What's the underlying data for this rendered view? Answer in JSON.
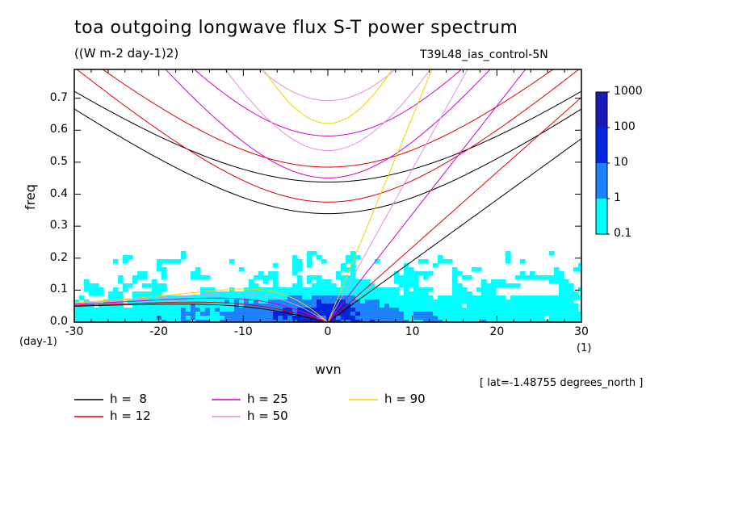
{
  "chart_data": {
    "type": "heatmap",
    "title": "toa outgoing longwave flux S-T power spectrum",
    "units": "((W m-2 day-1)2)",
    "run_label": "T39L48_ias_control-5N",
    "xlabel": "wvn",
    "ylabel": "freq",
    "x_unit": "(1)",
    "y_unit": "(day-1)",
    "xlim": [
      -30,
      30
    ],
    "ylim": [
      0,
      0.79
    ],
    "x_ticks": [
      -30,
      -20,
      -10,
      0,
      10,
      20,
      30
    ],
    "x_tick_labels": [
      "-30",
      "-20",
      "-10",
      "0",
      "10",
      "20",
      "30"
    ],
    "y_ticks": [
      0,
      0.1,
      0.2,
      0.3,
      0.4,
      0.5,
      0.6,
      0.7
    ],
    "y_tick_labels": [
      "0.0",
      "0.1",
      "0.2",
      "0.3",
      "0.4",
      "0.5",
      "0.6",
      "0.7"
    ],
    "colorbar": {
      "levels": [
        "0.1",
        "1",
        "10",
        "100",
        "1000"
      ],
      "colors": [
        "#00ffff",
        "#1e82ff",
        "#0026e0",
        "#1a1ab8",
        "#3c14a8"
      ]
    },
    "annotation": "[ lat=-1.48755 degrees_north ]",
    "dispersion_curves": [
      {
        "label": "h =  8",
        "h": 8,
        "color": "#000000"
      },
      {
        "label": "h = 12",
        "h": 12,
        "color": "#e00000"
      },
      {
        "label": "h = 25",
        "h": 25,
        "color": "#d400c8"
      },
      {
        "label": "h = 50",
        "h": 50,
        "color": "#e090e0"
      },
      {
        "label": "h = 90",
        "h": 90,
        "color": "#f0d000"
      }
    ]
  }
}
